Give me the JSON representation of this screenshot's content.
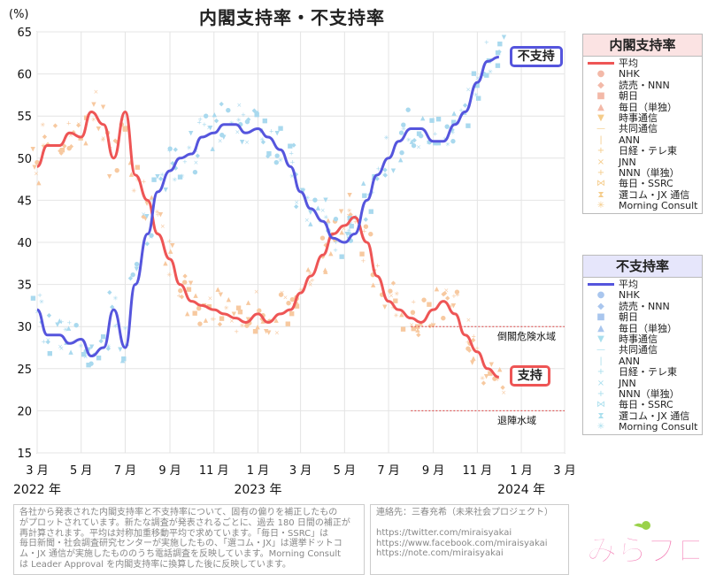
{
  "title": "内閣支持率・不支持率",
  "chart_data": {
    "type": "line",
    "title": "内閣支持率・不支持率",
    "ylabel": "(%)",
    "ylim": [
      15,
      65
    ],
    "yticks": [
      15,
      20,
      25,
      30,
      35,
      40,
      45,
      50,
      55,
      60,
      65
    ],
    "xlim": [
      "2022-03-01",
      "2024-03-01"
    ],
    "xticks": [
      {
        "date": "2022-03-01",
        "label": "3 月"
      },
      {
        "date": "2022-05-01",
        "label": "5 月"
      },
      {
        "date": "2022-07-01",
        "label": "7 月"
      },
      {
        "date": "2022-09-01",
        "label": "9 月"
      },
      {
        "date": "2022-11-01",
        "label": "11 月"
      },
      {
        "date": "2023-01-01",
        "label": "1 月"
      },
      {
        "date": "2023-03-01",
        "label": "3 月"
      },
      {
        "date": "2023-05-01",
        "label": "5 月"
      },
      {
        "date": "2023-07-01",
        "label": "7 月"
      },
      {
        "date": "2023-09-01",
        "label": "9 月"
      },
      {
        "date": "2023-11-01",
        "label": "11 月"
      },
      {
        "date": "2024-01-01",
        "label": "1 月"
      },
      {
        "date": "2024-03-01",
        "label": "3 月"
      }
    ],
    "year_labels": [
      {
        "date": "2022-03-01",
        "label": "2022 年"
      },
      {
        "date": "2023-01-01",
        "label": "2023 年"
      },
      {
        "date": "2024-01-01",
        "label": "2024 年"
      }
    ],
    "grid": true,
    "legend_position": "right",
    "series": [
      {
        "name": "支持",
        "color": "#ee5555",
        "x": [
          "2022-03-01",
          "2022-03-15",
          "2022-04-01",
          "2022-04-15",
          "2022-05-01",
          "2022-05-15",
          "2022-06-01",
          "2022-06-15",
          "2022-07-01",
          "2022-07-15",
          "2022-08-01",
          "2022-08-15",
          "2022-09-01",
          "2022-09-15",
          "2022-10-01",
          "2022-10-15",
          "2022-11-01",
          "2022-11-15",
          "2022-12-01",
          "2022-12-15",
          "2023-01-01",
          "2023-01-15",
          "2023-02-01",
          "2023-02-15",
          "2023-03-01",
          "2023-03-15",
          "2023-04-01",
          "2023-04-15",
          "2023-05-01",
          "2023-05-15",
          "2023-06-01",
          "2023-06-15",
          "2023-07-01",
          "2023-07-15",
          "2023-08-01",
          "2023-08-15",
          "2023-09-01",
          "2023-09-15",
          "2023-10-01",
          "2023-10-15",
          "2023-11-01",
          "2023-11-15",
          "2023-12-01"
        ],
        "y": [
          49,
          51.5,
          51.5,
          53,
          52.5,
          55.5,
          54,
          50,
          55.5,
          48,
          45,
          41,
          38,
          35,
          33,
          32.5,
          32,
          31.5,
          31,
          30.5,
          31.5,
          30.5,
          31.5,
          32,
          34,
          36,
          38.5,
          41,
          42,
          43,
          40,
          36,
          33,
          32,
          31,
          30.5,
          32,
          33,
          31.5,
          29,
          27,
          25,
          24
        ]
      },
      {
        "name": "不支持",
        "color": "#5555dd",
        "x": [
          "2022-03-01",
          "2022-03-15",
          "2022-04-01",
          "2022-04-15",
          "2022-05-01",
          "2022-05-15",
          "2022-06-01",
          "2022-06-15",
          "2022-07-01",
          "2022-07-15",
          "2022-08-01",
          "2022-08-15",
          "2022-09-01",
          "2022-09-15",
          "2022-10-01",
          "2022-10-15",
          "2022-11-01",
          "2022-11-15",
          "2022-12-01",
          "2022-12-15",
          "2023-01-01",
          "2023-01-15",
          "2023-02-01",
          "2023-02-15",
          "2023-03-01",
          "2023-03-15",
          "2023-04-01",
          "2023-04-15",
          "2023-05-01",
          "2023-05-15",
          "2023-06-01",
          "2023-06-15",
          "2023-07-01",
          "2023-07-15",
          "2023-08-01",
          "2023-08-15",
          "2023-09-01",
          "2023-09-15",
          "2023-10-01",
          "2023-10-15",
          "2023-11-01",
          "2023-11-15",
          "2023-12-01"
        ],
        "y": [
          32,
          29,
          29,
          28,
          28.5,
          26.5,
          27.5,
          32,
          27.5,
          35,
          41,
          46,
          48.5,
          50,
          50.5,
          52.5,
          53,
          54,
          54,
          53,
          53.5,
          52.5,
          51,
          49,
          46,
          44,
          42.5,
          40.5,
          40,
          41,
          45,
          48,
          50,
          52,
          53.5,
          53.5,
          52,
          52,
          54,
          55.5,
          59,
          61.5,
          62
        ]
      }
    ],
    "threshold_lines": [
      {
        "value": 30,
        "label": "倒閣危険水域"
      },
      {
        "value": 20,
        "label": "退陣水域"
      }
    ],
    "end_labels": {
      "support": "支持",
      "nonsupport": "不支持"
    }
  },
  "legend": {
    "support": {
      "title": "内閣支持率",
      "items": [
        {
          "label": "平均",
          "symbol": "line",
          "color": "#ee5555"
        },
        {
          "label": "NHK",
          "symbol": "●",
          "color": "#f3b9a8"
        },
        {
          "label": "読売・NNN",
          "symbol": "◆",
          "color": "#f3b9a8"
        },
        {
          "label": "朝日",
          "symbol": "■",
          "color": "#f3b9a8"
        },
        {
          "label": "毎日（単独）",
          "symbol": "▲",
          "color": "#f3b9a8"
        },
        {
          "label": "時事通信",
          "symbol": "▼",
          "color": "#f5cc8a"
        },
        {
          "label": "共同通信",
          "symbol": "—",
          "color": "#f5cc8a"
        },
        {
          "label": "ANN",
          "symbol": "|",
          "color": "#f5cc8a"
        },
        {
          "label": "日経・テレ東",
          "symbol": "+",
          "color": "#f5cc8a"
        },
        {
          "label": "JNN",
          "symbol": "×",
          "color": "#f5cc8a"
        },
        {
          "label": "NNN（単独）",
          "symbol": "+",
          "color": "#f5cc8a"
        },
        {
          "label": "毎日・SSRC",
          "symbol": "⋈",
          "color": "#f5cc8a"
        },
        {
          "label": "選コム・JX 通信",
          "symbol": "⧗",
          "color": "#f5cc8a"
        },
        {
          "label": "Morning Consult",
          "symbol": "✳",
          "color": "#f5cc8a"
        }
      ]
    },
    "nonsupport": {
      "title": "不支持率",
      "items": [
        {
          "label": "平均",
          "symbol": "line",
          "color": "#5555dd"
        },
        {
          "label": "NHK",
          "symbol": "●",
          "color": "#a9c6ee"
        },
        {
          "label": "読売・NNN",
          "symbol": "◆",
          "color": "#a9c6ee"
        },
        {
          "label": "朝日",
          "symbol": "■",
          "color": "#a9c6ee"
        },
        {
          "label": "毎日（単独）",
          "symbol": "▲",
          "color": "#a9c6ee"
        },
        {
          "label": "時事通信",
          "symbol": "▼",
          "color": "#a9dfee"
        },
        {
          "label": "共同通信",
          "symbol": "—",
          "color": "#a9dfee"
        },
        {
          "label": "ANN",
          "symbol": "|",
          "color": "#a9dfee"
        },
        {
          "label": "日経・テレ東",
          "symbol": "+",
          "color": "#a9dfee"
        },
        {
          "label": "JNN",
          "symbol": "×",
          "color": "#a9dfee"
        },
        {
          "label": "NNN（単独）",
          "symbol": "+",
          "color": "#a9dfee"
        },
        {
          "label": "毎日・SSRC",
          "symbol": "⋈",
          "color": "#a9dfee"
        },
        {
          "label": "選コム・JX 通信",
          "symbol": "⧗",
          "color": "#a9dfee"
        },
        {
          "label": "Morning Consult",
          "symbol": "✳",
          "color": "#a9dfee"
        }
      ]
    }
  },
  "notes": {
    "description": [
      "各社から発表された内閣支持率と不支持率について、固有の偏りを補正したもの",
      "がプロットされています。新たな調査が発表されるごとに、過去 180 日間の補正が",
      "再計算されます。平均は対称加重移動平均で求めています。「毎日・SSRC」は",
      "毎日新聞・社会調査研究センターが実施したもの、「選コム・JX」は選挙ドットコ",
      "ム・JX 通信が実施したもののうち電話調査を反映しています。Morning Consult",
      "は Leader Approval を内閣支持率に換算した後に反映しています。"
    ],
    "contact": [
      "連絡先：三春充希（未来社会プロジェクト）",
      "",
      "https://twitter.com/miraisyakai",
      "https://www.facebook.com/miraisyakai",
      "https://note.com/miraisyakai"
    ]
  },
  "logo_text": "みらプロ",
  "colors": {
    "support": "#ee5555",
    "nonsupport": "#5555dd",
    "support_light": "#f7c9a0",
    "nonsupport_light": "#a9d9ee",
    "threshold": "#dd4444"
  }
}
